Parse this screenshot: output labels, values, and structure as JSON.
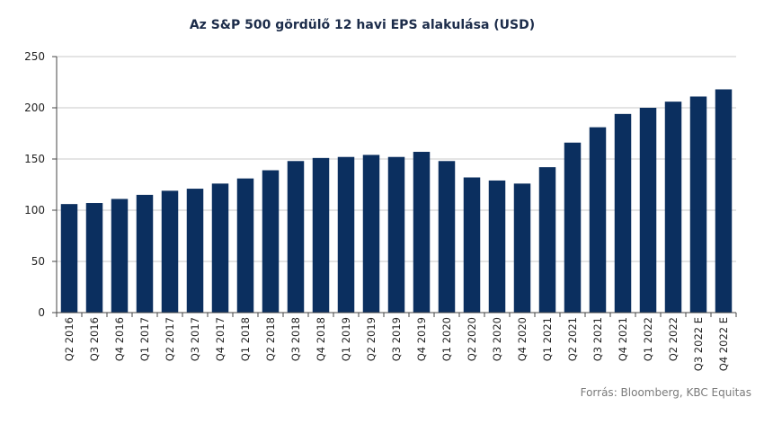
{
  "chart_data": {
    "type": "bar",
    "title": "Az S&P 500 gördülő 12 havi EPS alakulása (USD)",
    "xlabel": "",
    "ylabel": "",
    "ylim": [
      0,
      250
    ],
    "yticks": [
      0,
      50,
      100,
      150,
      200,
      250
    ],
    "grid": true,
    "bar_color": "#0b2f5f",
    "categories": [
      "Q2 2016",
      "Q3 2016",
      "Q4 2016",
      "Q1 2017",
      "Q2 2017",
      "Q3 2017",
      "Q4 2017",
      "Q1 2018",
      "Q2 2018",
      "Q3 2018",
      "Q4 2018",
      "Q1 2019",
      "Q2 2019",
      "Q3 2019",
      "Q4 2019",
      "Q1 2020",
      "Q2 2020",
      "Q3 2020",
      "Q4 2020",
      "Q1 2021",
      "Q2 2021",
      "Q3 2021",
      "Q4 2021",
      "Q1 2022",
      "Q2 2022",
      "Q3 2022 E",
      "Q4 2022 E"
    ],
    "values": [
      106,
      107,
      111,
      115,
      119,
      121,
      126,
      131,
      139,
      148,
      151,
      152,
      154,
      152,
      157,
      148,
      132,
      129,
      126,
      142,
      166,
      181,
      194,
      200,
      206,
      211,
      218
    ]
  },
  "source": "Forrás: Bloomberg, KBC Equitas"
}
